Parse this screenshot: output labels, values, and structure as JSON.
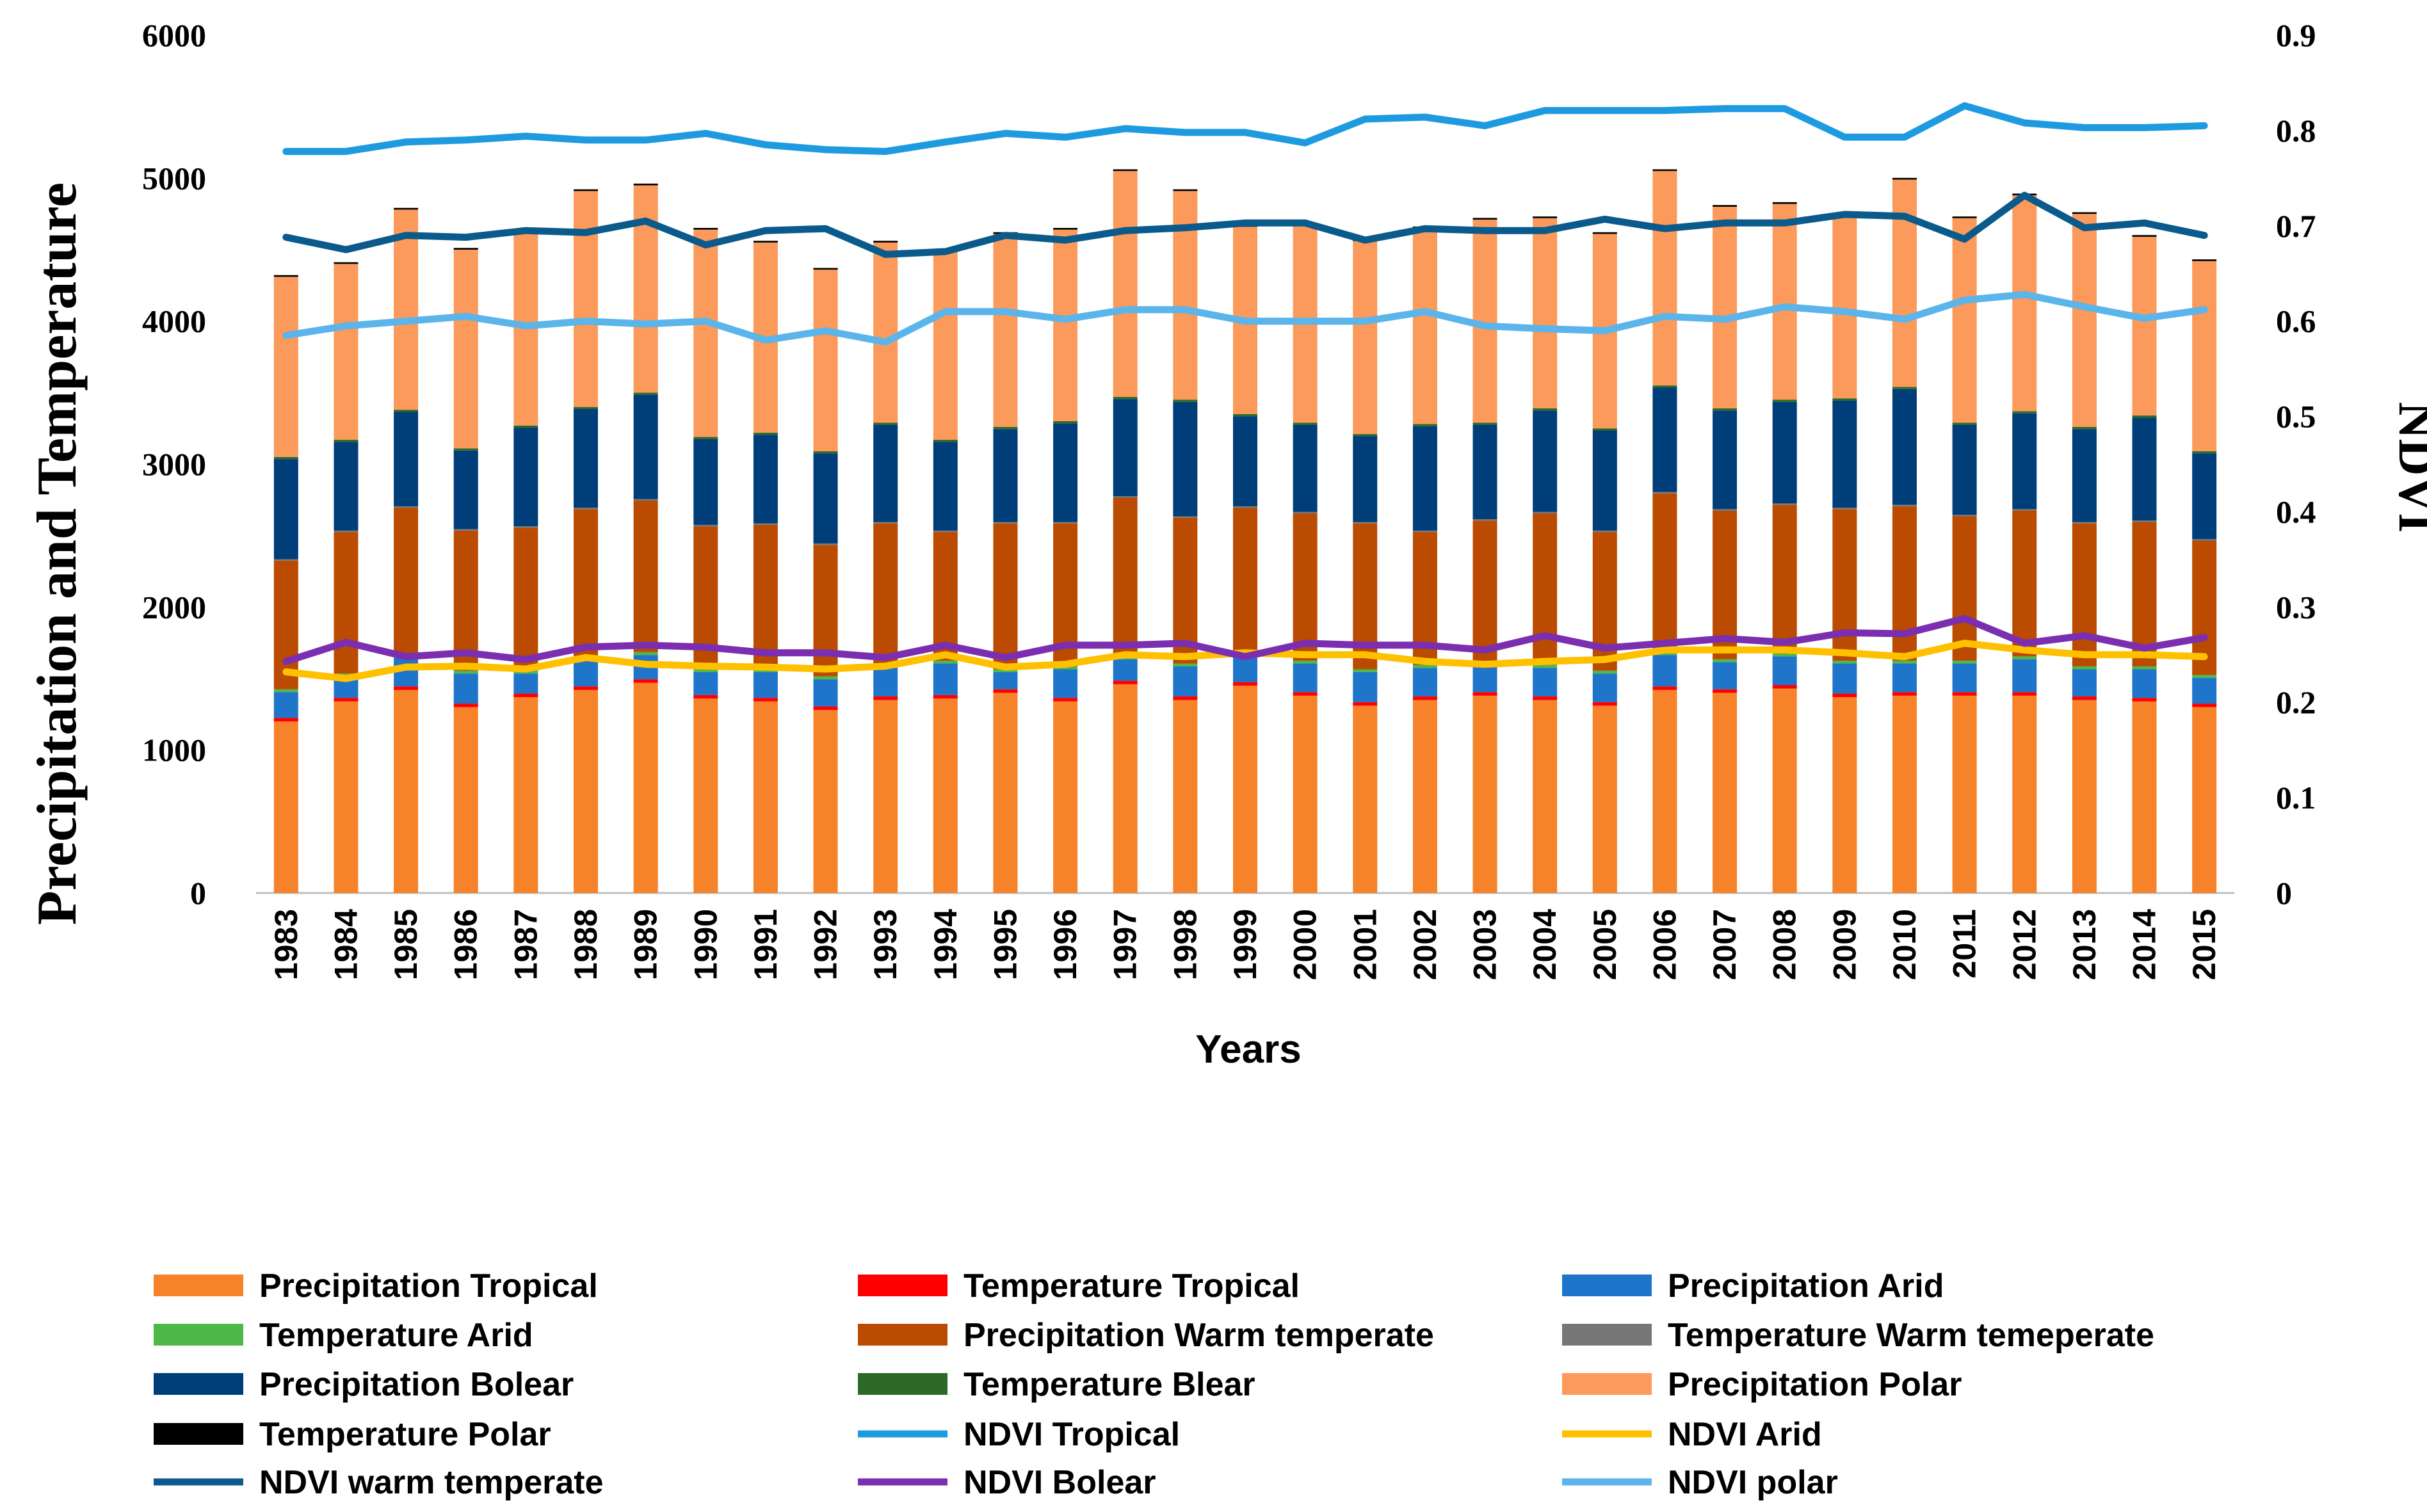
{
  "chart_data": {
    "type": "bar",
    "stacked": true,
    "title": "",
    "xlabel": "Years",
    "ylabel": "Precipitation and Temperature",
    "y2label": "NDVI",
    "ylim": [
      0,
      6000
    ],
    "y2lim": [
      0,
      0.9
    ],
    "yticks": [
      "0",
      "1000",
      "2000",
      "3000",
      "4000",
      "5000",
      "6000"
    ],
    "y2ticks": [
      "0",
      "0.1",
      "0.2",
      "0.3",
      "0.4",
      "0.5",
      "0.6",
      "0.7",
      "0.8",
      "0.9"
    ],
    "categories": [
      "1983",
      "1984",
      "1985",
      "1986",
      "1987",
      "1988",
      "1989",
      "1990",
      "1991",
      "1992",
      "1993",
      "1994",
      "1995",
      "1996",
      "1997",
      "1998",
      "1999",
      "2000",
      "2001",
      "2002",
      "2003",
      "2004",
      "2005",
      "2006",
      "2007",
      "2008",
      "2009",
      "2010",
      "2011",
      "2012",
      "2013",
      "2014",
      "2015"
    ],
    "bar_series": [
      {
        "name": "Precipitation Tropical",
        "color": "#F6822A",
        "values": [
          1200,
          1340,
          1420,
          1300,
          1370,
          1420,
          1470,
          1360,
          1340,
          1280,
          1350,
          1360,
          1400,
          1340,
          1460,
          1350,
          1450,
          1380,
          1310,
          1350,
          1380,
          1350,
          1310,
          1420,
          1400,
          1430,
          1370,
          1380,
          1380,
          1380,
          1350,
          1340,
          1300
        ]
      },
      {
        "name": "Temperature Tropical",
        "color": "#FF0000",
        "values": [
          25,
          25,
          25,
          25,
          25,
          25,
          25,
          25,
          25,
          25,
          25,
          25,
          25,
          25,
          25,
          25,
          25,
          25,
          25,
          25,
          25,
          25,
          25,
          25,
          25,
          25,
          25,
          25,
          25,
          25,
          25,
          25,
          25
        ]
      },
      {
        "name": "Precipitation Arid",
        "color": "#1F75C9",
        "values": [
          180,
          150,
          200,
          210,
          140,
          180,
          170,
          160,
          180,
          190,
          200,
          220,
          120,
          200,
          150,
          210,
          170,
          200,
          210,
          200,
          180,
          200,
          200,
          220,
          190,
          200,
          210,
          200,
          200,
          230,
          190,
          200,
          180
        ]
      },
      {
        "name": "Temperature Arid",
        "color": "#4EB848",
        "values": [
          20,
          20,
          20,
          20,
          20,
          20,
          20,
          20,
          20,
          20,
          20,
          20,
          20,
          20,
          20,
          20,
          20,
          20,
          20,
          20,
          20,
          20,
          20,
          20,
          20,
          20,
          20,
          20,
          20,
          20,
          20,
          20,
          20
        ]
      },
      {
        "name": "Precipitation Warm temperate",
        "color": "#BB4B00",
        "values": [
          900,
          990,
          1030,
          980,
          1000,
          1040,
          1060,
          1000,
          1010,
          920,
          990,
          900,
          1020,
          1000,
          1110,
          1020,
          1030,
          1030,
          1020,
          930,
          1000,
          1060,
          970,
          1110,
          1040,
          1040,
          1060,
          1080,
          1010,
          1020,
          1000,
          1010,
          940
        ]
      },
      {
        "name": "Temperature Warm temeperate",
        "color": "#777777",
        "values": [
          10,
          10,
          10,
          10,
          10,
          10,
          10,
          10,
          10,
          10,
          10,
          10,
          10,
          10,
          10,
          10,
          10,
          10,
          10,
          10,
          10,
          10,
          10,
          10,
          10,
          10,
          10,
          10,
          10,
          10,
          10,
          10,
          10
        ]
      },
      {
        "name": "Precipitation Bolear",
        "color": "#003E7A",
        "values": [
          700,
          620,
          660,
          550,
          690,
          690,
          730,
          600,
          620,
          630,
          680,
          620,
          650,
          690,
          680,
          800,
          630,
          610,
          600,
          730,
          660,
          710,
          700,
          730,
          690,
          710,
          750,
          810,
          630,
          670,
          650,
          720,
          600
        ]
      },
      {
        "name": "Temperature Blear",
        "color": "#2D6A27",
        "values": [
          15,
          15,
          15,
          15,
          15,
          15,
          15,
          15,
          15,
          15,
          15,
          15,
          15,
          15,
          15,
          15,
          15,
          15,
          15,
          15,
          15,
          15,
          15,
          15,
          15,
          15,
          15,
          15,
          15,
          15,
          15,
          15,
          15
        ]
      },
      {
        "name": "Precipitation Polar",
        "color": "#FB9A5A",
        "values": [
          1260,
          1230,
          1400,
          1390,
          1350,
          1510,
          1450,
          1450,
          1330,
          1270,
          1260,
          1320,
          1350,
          1340,
          1580,
          1460,
          1310,
          1380,
          1350,
          1370,
          1420,
          1330,
          1360,
          1500,
          1410,
          1370,
          1270,
          1450,
          1430,
          1510,
          1490,
          1250,
          1330
        ]
      },
      {
        "name": "Temperature Polar",
        "color": "#000000",
        "values": [
          12,
          12,
          12,
          12,
          12,
          12,
          12,
          12,
          12,
          12,
          12,
          12,
          12,
          12,
          12,
          12,
          12,
          12,
          12,
          12,
          12,
          12,
          12,
          12,
          12,
          12,
          12,
          12,
          12,
          12,
          12,
          12,
          12
        ]
      }
    ],
    "line_series": [
      {
        "name": "NDVI Tropical",
        "color": "#1E9BE0",
        "values": [
          0.778,
          0.778,
          0.788,
          0.79,
          0.794,
          0.79,
          0.79,
          0.797,
          0.785,
          0.78,
          0.778,
          0.788,
          0.797,
          0.793,
          0.802,
          0.798,
          0.798,
          0.787,
          0.812,
          0.814,
          0.805,
          0.821,
          0.821,
          0.821,
          0.823,
          0.823,
          0.793,
          0.793,
          0.826,
          0.808,
          0.803,
          0.803,
          0.805
        ]
      },
      {
        "name": "NDVI Arid",
        "color": "#FFC000",
        "values": [
          0.232,
          0.225,
          0.237,
          0.238,
          0.235,
          0.247,
          0.24,
          0.238,
          0.237,
          0.235,
          0.238,
          0.25,
          0.237,
          0.24,
          0.25,
          0.248,
          0.252,
          0.25,
          0.25,
          0.243,
          0.24,
          0.243,
          0.245,
          0.255,
          0.255,
          0.255,
          0.252,
          0.248,
          0.262,
          0.255,
          0.25,
          0.25,
          0.248
        ]
      },
      {
        "name": "NDVI warm temperate",
        "color": "#0A5A8C",
        "values": [
          0.688,
          0.675,
          0.69,
          0.688,
          0.695,
          0.693,
          0.705,
          0.68,
          0.695,
          0.697,
          0.67,
          0.673,
          0.69,
          0.685,
          0.695,
          0.698,
          0.703,
          0.703,
          0.685,
          0.697,
          0.695,
          0.695,
          0.707,
          0.697,
          0.703,
          0.703,
          0.712,
          0.71,
          0.686,
          0.732,
          0.698,
          0.703,
          0.69
        ]
      },
      {
        "name": "NDVI Bolear",
        "color": "#7B2FB0",
        "values": [
          0.243,
          0.263,
          0.248,
          0.252,
          0.245,
          0.258,
          0.26,
          0.258,
          0.252,
          0.252,
          0.247,
          0.26,
          0.247,
          0.26,
          0.26,
          0.262,
          0.248,
          0.262,
          0.26,
          0.26,
          0.255,
          0.27,
          0.257,
          0.262,
          0.267,
          0.263,
          0.273,
          0.272,
          0.288,
          0.262,
          0.27,
          0.257,
          0.268
        ]
      },
      {
        "name": "NDVI polar",
        "color": "#5BB5EA",
        "values": [
          0.585,
          0.595,
          0.6,
          0.605,
          0.595,
          0.6,
          0.597,
          0.6,
          0.58,
          0.59,
          0.578,
          0.61,
          0.61,
          0.602,
          0.612,
          0.612,
          0.6,
          0.6,
          0.6,
          0.61,
          0.595,
          0.592,
          0.59,
          0.605,
          0.602,
          0.615,
          0.61,
          0.602,
          0.622,
          0.628,
          0.615,
          0.603,
          0.612
        ]
      }
    ],
    "legend": {
      "placement": "bottom",
      "entries": [
        {
          "label": "Precipitation Tropical",
          "color": "#F6822A",
          "kind": "bar"
        },
        {
          "label": "Temperature Tropical",
          "color": "#FF0000",
          "kind": "bar"
        },
        {
          "label": "Precipitation Arid",
          "color": "#1F75C9",
          "kind": "bar"
        },
        {
          "label": "Temperature Arid",
          "color": "#4EB848",
          "kind": "bar"
        },
        {
          "label": "Precipitation Warm temperate",
          "color": "#BB4B00",
          "kind": "bar"
        },
        {
          "label": "Temperature Warm temeperate",
          "color": "#777777",
          "kind": "bar"
        },
        {
          "label": "Precipitation Bolear",
          "color": "#003E7A",
          "kind": "bar"
        },
        {
          "label": "Temperature Blear",
          "color": "#2D6A27",
          "kind": "bar"
        },
        {
          "label": "Precipitation Polar",
          "color": "#FB9A5A",
          "kind": "bar"
        },
        {
          "label": "Temperature Polar",
          "color": "#000000",
          "kind": "bar"
        },
        {
          "label": "NDVI Tropical",
          "color": "#1E9BE0",
          "kind": "line"
        },
        {
          "label": "NDVI Arid",
          "color": "#FFC000",
          "kind": "line"
        },
        {
          "label": "NDVI warm temperate",
          "color": "#0A5A8C",
          "kind": "line"
        },
        {
          "label": "NDVI Bolear",
          "color": "#7B2FB0",
          "kind": "line"
        },
        {
          "label": "NDVI polar",
          "color": "#5BB5EA",
          "kind": "line"
        }
      ]
    }
  }
}
